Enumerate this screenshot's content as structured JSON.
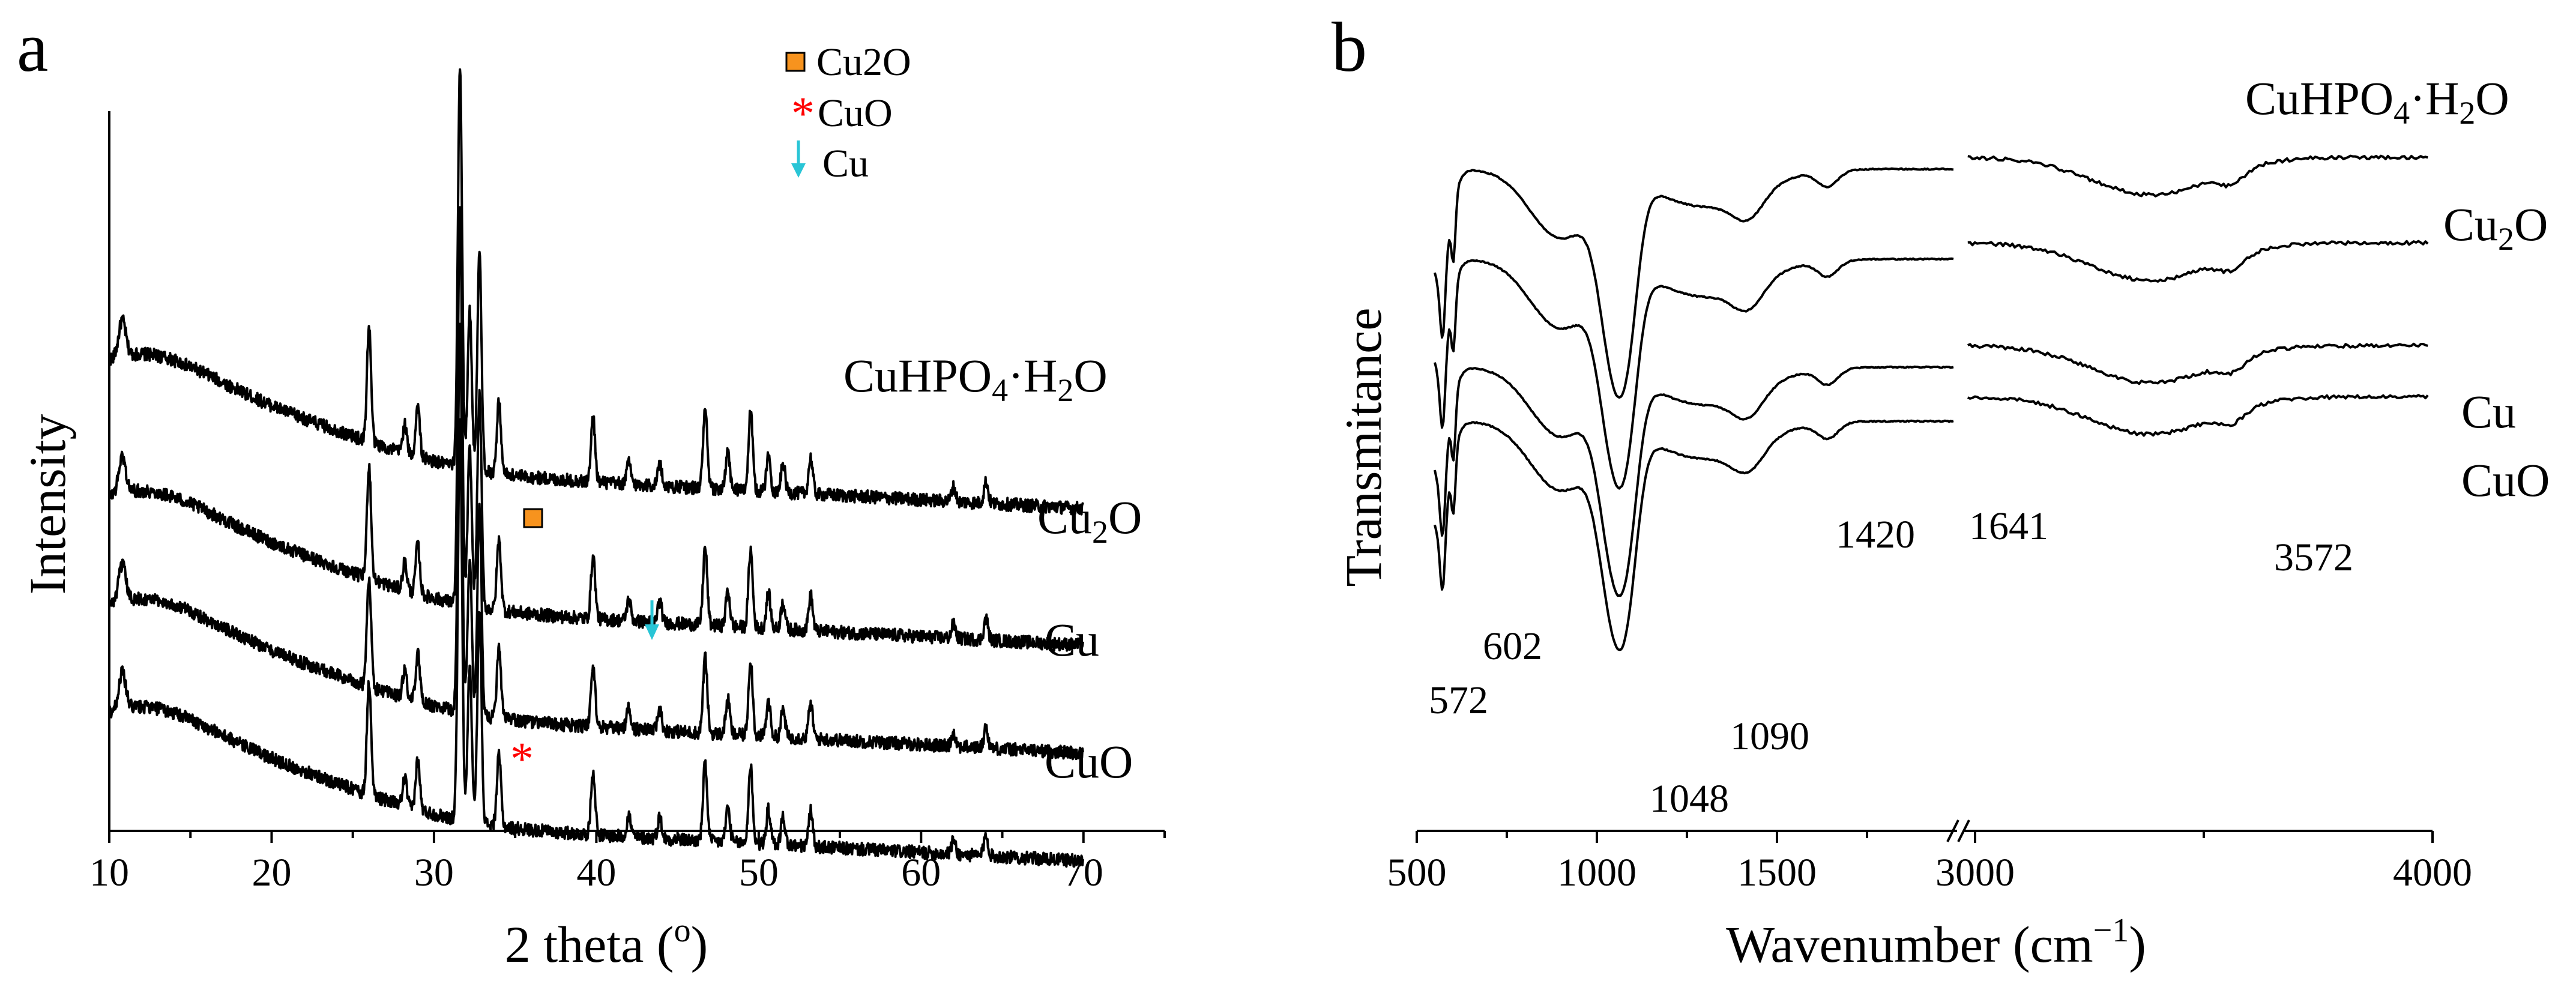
{
  "chart_data": [
    {
      "panel": "a",
      "type": "line",
      "xlabel": "2 theta (",
      "xlabel_sup": "o",
      "xlabel_end": ")",
      "ylabel": "Intensity",
      "xlim": [
        10,
        75
      ],
      "xticks": [
        "10",
        "20",
        "30",
        "40",
        "50",
        "60",
        "70"
      ],
      "xtick_values": [
        10,
        20,
        30,
        40,
        50,
        60,
        70
      ],
      "x_range": [
        10,
        70
      ],
      "legend": [
        {
          "marker": "square",
          "color": "#F7931E",
          "text_main": "Cu",
          "text_sub": "2",
          "text_end": "O"
        },
        {
          "marker": "asterisk",
          "color": "#FF0000",
          "text_main": "CuO",
          "text_sub": "",
          "text_end": ""
        },
        {
          "marker": "arrow",
          "color": "#29C5D6",
          "text_main": "Cu",
          "text_sub": "",
          "text_end": ""
        }
      ],
      "annotations": [
        {
          "marker": "square",
          "color": "#F7931E",
          "x": 36.3,
          "series": "Cu2O"
        },
        {
          "marker": "arrow",
          "color": "#29C5D6",
          "x": 43.3,
          "series": "Cu"
        },
        {
          "marker": "asterisk",
          "color": "#FF0000",
          "x": 35.5,
          "series": "CuO"
        }
      ],
      "series": [
        {
          "name": "CuHPO4·H2O",
          "label_main": "CuHPO",
          "label_sub1": "4",
          "label_mid": "·H",
          "label_sub2": "2",
          "label_end": "O",
          "base": 0.52,
          "scale": 1.0
        },
        {
          "name": "Cu2O",
          "label_main": "Cu",
          "label_sub1": "2",
          "label_mid": "O",
          "label_sub2": "",
          "label_end": "",
          "base": 0.33,
          "scale": 0.98
        },
        {
          "name": "Cu",
          "label_main": "Cu",
          "label_sub1": "",
          "label_mid": "",
          "label_sub2": "",
          "label_end": "",
          "base": 0.18,
          "scale": 0.96
        },
        {
          "name": "CuO",
          "label_main": "CuO",
          "label_sub1": "",
          "label_mid": "",
          "label_sub2": "",
          "label_end": "",
          "base": 0.03,
          "scale": 0.98
        }
      ],
      "peaks": [
        {
          "x": 26.0,
          "h": 0.16
        },
        {
          "x": 28.2,
          "h": 0.04
        },
        {
          "x": 29.0,
          "h": 0.07
        },
        {
          "x": 31.6,
          "h": 0.56
        },
        {
          "x": 32.2,
          "h": 0.22
        },
        {
          "x": 32.8,
          "h": 0.3
        },
        {
          "x": 34.0,
          "h": 0.1
        },
        {
          "x": 39.8,
          "h": 0.09
        },
        {
          "x": 42.0,
          "h": 0.03
        },
        {
          "x": 43.9,
          "h": 0.03
        },
        {
          "x": 46.7,
          "h": 0.11
        },
        {
          "x": 48.1,
          "h": 0.05
        },
        {
          "x": 49.5,
          "h": 0.11
        },
        {
          "x": 50.6,
          "h": 0.05
        },
        {
          "x": 51.5,
          "h": 0.04
        },
        {
          "x": 53.2,
          "h": 0.05
        },
        {
          "x": 62.0,
          "h": 0.02
        },
        {
          "x": 64.0,
          "h": 0.03
        }
      ],
      "panel_label": "a"
    },
    {
      "panel": "b",
      "type": "line",
      "xlabel": "Wavenumber (cm",
      "xlabel_sup": "−1",
      "xlabel_end": ")",
      "ylabel": "Transmitance",
      "x_break": true,
      "segment1": {
        "xlim": [
          500,
          2000
        ],
        "xticks": [
          "500",
          "1000",
          "1500"
        ],
        "xtick_values": [
          500,
          1000,
          1500
        ]
      },
      "segment2": {
        "xlim": [
          3000,
          4000
        ],
        "xticks": [
          "3000",
          "4000"
        ],
        "xtick_values": [
          3000,
          4000
        ]
      },
      "series": [
        {
          "name": "CuHPO4·H2O",
          "label_main": "CuHPO",
          "label_sub1": "4",
          "label_mid": "·H",
          "label_sub2": "2",
          "label_end": "O",
          "offset": 0.0
        },
        {
          "name": "Cu2O",
          "label_main": "Cu",
          "label_sub1": "2",
          "label_mid": "O",
          "label_sub2": "",
          "label_end": "",
          "offset": 0.15
        },
        {
          "name": "Cu",
          "label_main": "Cu",
          "label_sub1": "",
          "label_mid": "",
          "label_sub2": "",
          "label_end": "",
          "offset": 0.33
        },
        {
          "name": "CuO",
          "label_main": "CuO",
          "label_sub1": "",
          "label_mid": "",
          "label_sub2": "",
          "label_end": "",
          "offset": 0.42
        }
      ],
      "peak_labels": [
        "572",
        "602",
        "1048",
        "1090",
        "1420",
        "1641",
        "3572"
      ],
      "panel_label": "b"
    }
  ]
}
